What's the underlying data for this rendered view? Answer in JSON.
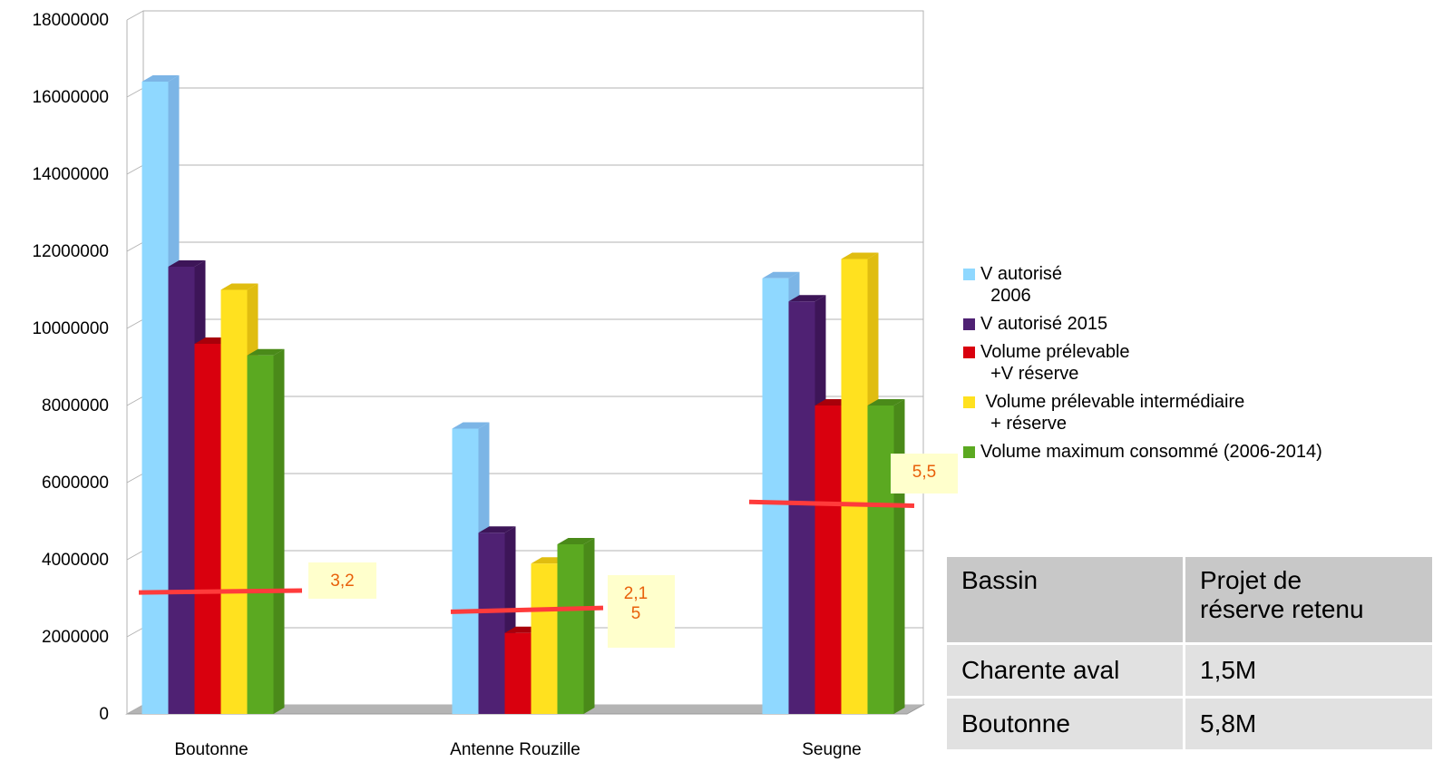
{
  "chart_data": {
    "type": "bar",
    "categories": [
      "Boutonne",
      "Antenne Rouzille",
      "Seugne"
    ],
    "series": [
      {
        "name": "V autorisé\n  2006",
        "color": "#8fd8ff",
        "side": "#7cb5e6",
        "values": [
          16400000,
          7400000,
          11300000
        ]
      },
      {
        "name": "V autorisé 2015",
        "color": "#4f2173",
        "side": "#3d1558",
        "values": [
          11600000,
          4700000,
          10700000
        ]
      },
      {
        "name": "Volume prélevable\n  +V réserve",
        "color": "#d9000e",
        "side": "#a8000a",
        "values": [
          9600000,
          2100000,
          8000000
        ]
      },
      {
        "name": " Volume prélevable intermédiaire\n  + réserve",
        "color": "#ffe11f",
        "side": "#e0bd10",
        "values": [
          11000000,
          3900000,
          11800000
        ]
      },
      {
        "name": "Volume maximum consommé (2006-2014)",
        "color": "#5ba921",
        "side": "#4a8a19",
        "values": [
          9300000,
          4400000,
          8000000
        ]
      }
    ],
    "ylim": [
      0,
      18000000
    ],
    "yticks": [
      "0",
      "2000000",
      "4000000",
      "6000000",
      "8000000",
      "10000000",
      "12000000",
      "14000000",
      "16000000",
      "18000000"
    ],
    "grid": true,
    "legend_position": "right",
    "reference_lines": [
      {
        "category": "Boutonne",
        "y_start": 3150000,
        "y_end": 3200000,
        "label": "3,2"
      },
      {
        "category": "Antenne Rouzille",
        "y_start": 2650000,
        "y_end": 2750000,
        "label": "2,1\n5"
      },
      {
        "category": "Seugne",
        "y_start": 5500000,
        "y_end": 5400000,
        "label": "5,5"
      }
    ],
    "reference_color": "#ff3b3b",
    "annotation_color": "#e8600a",
    "annotation_bg": "#ffffcc"
  },
  "table": {
    "header": [
      "Bassin",
      "Projet de\nréserve retenu"
    ],
    "rows": [
      [
        "Charente aval",
        "1,5M"
      ],
      [
        "Boutonne",
        "5,8M"
      ]
    ]
  }
}
